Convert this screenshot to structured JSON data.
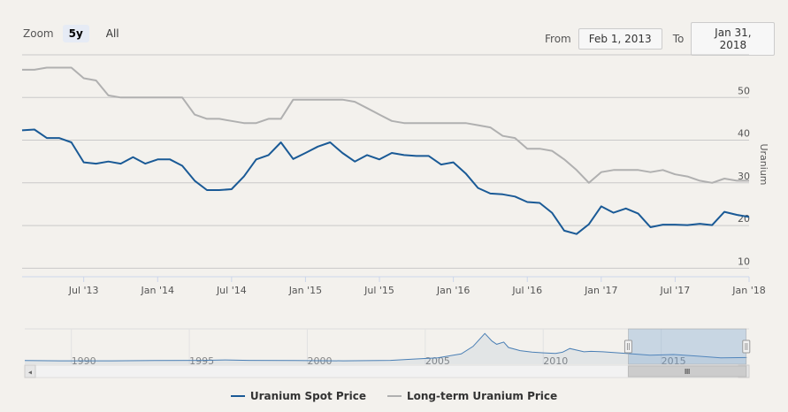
{
  "zoom": {
    "label": "Zoom",
    "buttons": [
      "5y",
      "All"
    ],
    "active": "5y"
  },
  "range": {
    "from_label": "From",
    "from_value": "Feb 1, 2013",
    "to_label": "To",
    "to_value": "Jan 31, 2018"
  },
  "chart_data": {
    "type": "line",
    "x_tick_labels": [
      "Jul '13",
      "Jan '14",
      "Jul '14",
      "Jan '15",
      "Jul '15",
      "Jan '16",
      "Jul '16",
      "Jan '17",
      "Jul '17",
      "Jan '18"
    ],
    "y_ticks": [
      10,
      20,
      30,
      40,
      50
    ],
    "y_label": "Uranium",
    "ylim": [
      8,
      60
    ],
    "grid": true,
    "legend_position": "bottom-center",
    "x": [
      "2013-02",
      "2013-03",
      "2013-04",
      "2013-05",
      "2013-06",
      "2013-07",
      "2013-08",
      "2013-09",
      "2013-10",
      "2013-11",
      "2013-12",
      "2014-01",
      "2014-02",
      "2014-03",
      "2014-04",
      "2014-05",
      "2014-06",
      "2014-07",
      "2014-08",
      "2014-09",
      "2014-10",
      "2014-11",
      "2014-12",
      "2015-01",
      "2015-02",
      "2015-03",
      "2015-04",
      "2015-05",
      "2015-06",
      "2015-07",
      "2015-08",
      "2015-09",
      "2015-10",
      "2015-11",
      "2015-12",
      "2016-01",
      "2016-02",
      "2016-03",
      "2016-04",
      "2016-05",
      "2016-06",
      "2016-07",
      "2016-08",
      "2016-09",
      "2016-10",
      "2016-11",
      "2016-12",
      "2017-01",
      "2017-02",
      "2017-03",
      "2017-04",
      "2017-05",
      "2017-06",
      "2017-07",
      "2017-08",
      "2017-09",
      "2017-10",
      "2017-11",
      "2017-12",
      "2018-01"
    ],
    "series": [
      {
        "name": "Uranium Spot Price",
        "color": "#1a5a96",
        "values": [
          42.3,
          42.5,
          40.5,
          40.5,
          39.5,
          34.8,
          34.5,
          35.0,
          34.5,
          36.0,
          34.5,
          35.5,
          35.5,
          34.0,
          30.5,
          28.3,
          28.3,
          28.5,
          31.5,
          35.5,
          36.5,
          39.5,
          35.6,
          37.0,
          38.5,
          39.5,
          37.0,
          35.0,
          36.5,
          35.5,
          37.0,
          36.5,
          36.3,
          36.3,
          34.3,
          34.8,
          32.2,
          28.8,
          27.5,
          27.3,
          26.8,
          25.5,
          25.3,
          23.0,
          18.8,
          18.0,
          20.3,
          24.5,
          23.0,
          24.0,
          22.8,
          19.6,
          20.2,
          20.2,
          20.1,
          20.4,
          20.1,
          23.2,
          22.5,
          22.0
        ]
      },
      {
        "name": "Long-term Uranium Price",
        "color": "#b0b0b0",
        "values": [
          56.5,
          56.5,
          57.0,
          57.0,
          57.0,
          54.5,
          54.0,
          50.5,
          50.0,
          50.0,
          50.0,
          50.0,
          50.0,
          50.0,
          46.0,
          45.0,
          45.0,
          44.5,
          44.0,
          44.0,
          45.0,
          45.0,
          49.5,
          49.5,
          49.5,
          49.5,
          49.5,
          49.0,
          47.5,
          46.0,
          44.5,
          44.0,
          44.0,
          44.0,
          44.0,
          44.0,
          44.0,
          43.5,
          43.0,
          41.0,
          40.5,
          38.0,
          38.0,
          37.5,
          35.5,
          33.0,
          30.0,
          32.5,
          33.0,
          33.0,
          33.0,
          32.5,
          33.0,
          32.0,
          31.5,
          30.5,
          30.0,
          31.0,
          30.5,
          30.5
        ]
      }
    ]
  },
  "navigator": {
    "x_tick_labels": [
      "1990",
      "1995",
      "2000",
      "2005",
      "2010",
      "2015"
    ],
    "x_tick_years": [
      1990,
      1995,
      2000,
      2005,
      2010,
      2015
    ],
    "x_range_years": [
      1987.5,
      2018.2
    ],
    "selected_range_years": [
      2013.08,
      2018.08
    ],
    "series_years": [
      1987.5,
      1989,
      1991,
      1993,
      1995,
      1996,
      1997,
      1999,
      2001,
      2003,
      2004,
      2005,
      2006,
      2006.5,
      2007,
      2007.3,
      2007.5,
      2007.8,
      2008,
      2008.5,
      2009,
      2009.5,
      2010,
      2010.3,
      2010.6,
      2011,
      2011.2,
      2011.5,
      2012,
      2013,
      2014,
      2015,
      2016,
      2017,
      2018.1
    ],
    "series_values": [
      9,
      8,
      8,
      9,
      10,
      12,
      10,
      9,
      8,
      10,
      16,
      22,
      40,
      75,
      135,
      100,
      85,
      95,
      70,
      55,
      48,
      45,
      42,
      48,
      65,
      55,
      50,
      52,
      50,
      42,
      34,
      37,
      30,
      22,
      23
    ]
  },
  "scrollbar": {
    "grip_icon": "grip-icon",
    "left_arrow": "◂",
    "right_arrow": "▸"
  }
}
